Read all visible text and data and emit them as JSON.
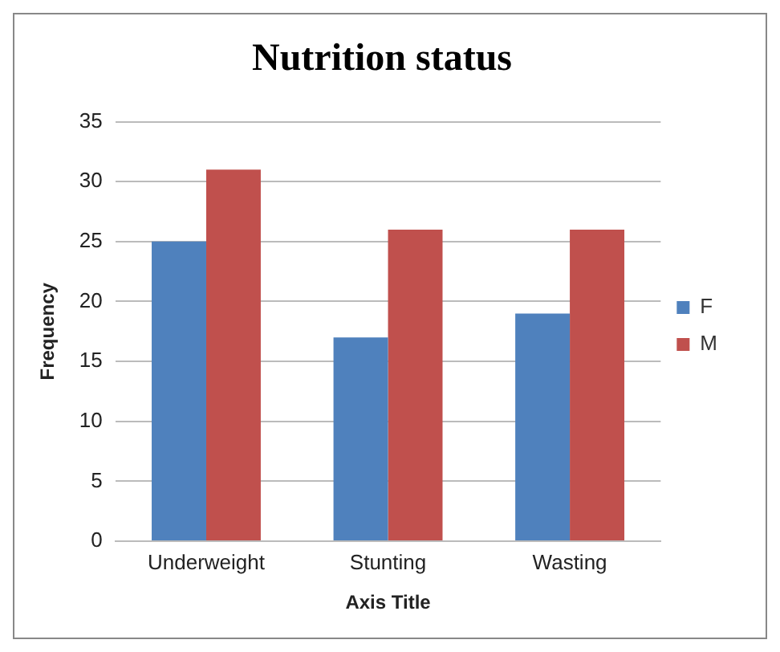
{
  "chart_data": {
    "type": "bar",
    "title": "Nutrition status",
    "xlabel": "Axis Title",
    "ylabel": "Frequency",
    "categories": [
      "Underweight",
      "Stunting",
      "Wasting"
    ],
    "series": [
      {
        "name": "F",
        "color": "#4f81bd",
        "values": [
          25,
          17,
          19
        ]
      },
      {
        "name": "M",
        "color": "#c0504d",
        "values": [
          31,
          26,
          26
        ]
      }
    ],
    "ylim": [
      0,
      35
    ],
    "yticks": [
      0,
      5,
      10,
      15,
      20,
      25,
      30,
      35
    ],
    "grid": "y",
    "legend": "right"
  }
}
